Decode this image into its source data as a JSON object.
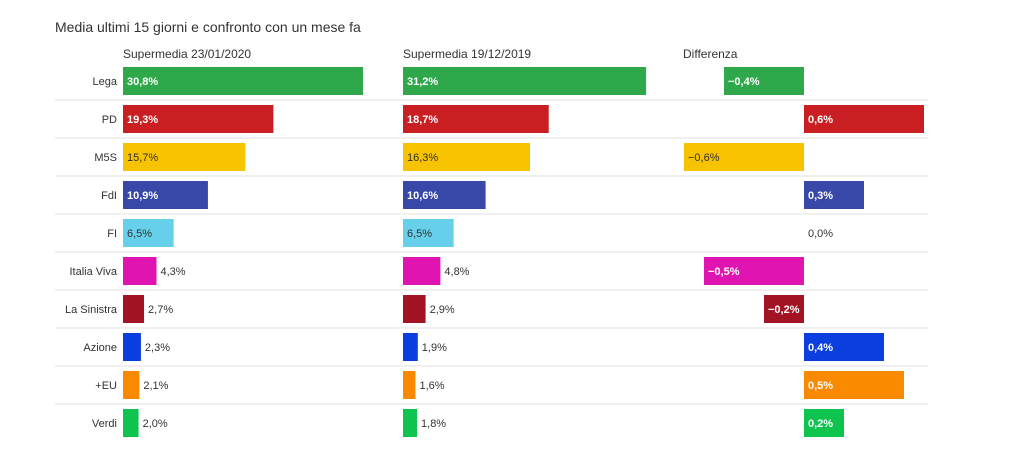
{
  "title": "Media ultimi 15 giorni e confronto con un mese fa",
  "chart_data": {
    "type": "bar",
    "panels": [
      {
        "key": "current",
        "label": "Supermedia 23/01/2020"
      },
      {
        "key": "previous",
        "label": "Supermedia 19/12/2019"
      },
      {
        "key": "diff",
        "label": "Differenza"
      }
    ],
    "parties": [
      {
        "name": "Lega",
        "current": 30.8,
        "previous": 31.2,
        "diff": -0.4,
        "color": "#2ea84a",
        "labels": {
          "current": "30,8%",
          "previous": "31,2%",
          "diff": "−0,4%"
        }
      },
      {
        "name": "PD",
        "current": 19.3,
        "previous": 18.7,
        "diff": 0.6,
        "color": "#c91f22",
        "labels": {
          "current": "19,3%",
          "previous": "18,7%",
          "diff": "0,6%"
        }
      },
      {
        "name": "M5S",
        "current": 15.7,
        "previous": 16.3,
        "diff": -0.6,
        "color": "#f7c200",
        "labels": {
          "current": "15,7%",
          "previous": "16,3%",
          "diff": "−0,6%"
        }
      },
      {
        "name": "FdI",
        "current": 10.9,
        "previous": 10.6,
        "diff": 0.3,
        "color": "#3748a8",
        "labels": {
          "current": "10,9%",
          "previous": "10,6%",
          "diff": "0,3%"
        }
      },
      {
        "name": "FI",
        "current": 6.5,
        "previous": 6.5,
        "diff": 0.0,
        "color": "#66d0ea",
        "labels": {
          "current": "6,5%",
          "previous": "6,5%",
          "diff": "0,0%"
        }
      },
      {
        "name": "Italia Viva",
        "current": 4.3,
        "previous": 4.8,
        "diff": -0.5,
        "color": "#e014b0",
        "labels": {
          "current": "4,3%",
          "previous": "4,8%",
          "diff": "−0,5%"
        }
      },
      {
        "name": "La Sinistra",
        "current": 2.7,
        "previous": 2.9,
        "diff": -0.2,
        "color": "#a21424",
        "labels": {
          "current": "2,7%",
          "previous": "2,9%",
          "diff": "−0,2%"
        }
      },
      {
        "name": "Azione",
        "current": 2.3,
        "previous": 1.9,
        "diff": 0.4,
        "color": "#0b3ede",
        "labels": {
          "current": "2,3%",
          "previous": "1,9%",
          "diff": "0,4%"
        }
      },
      {
        "name": "+EU",
        "current": 2.1,
        "previous": 1.6,
        "diff": 0.5,
        "color": "#f98a00",
        "labels": {
          "current": "2,1%",
          "previous": "1,6%",
          "diff": "0,5%"
        }
      },
      {
        "name": "Verdi",
        "current": 2.0,
        "previous": 1.8,
        "diff": 0.2,
        "color": "#0fc34f",
        "labels": {
          "current": "2,0%",
          "previous": "1,8%",
          "diff": "0,2%"
        }
      }
    ],
    "scale_max_percent": 30.8,
    "diff_range": [
      -0.6,
      0.6
    ],
    "grid": true,
    "legend": "none"
  }
}
